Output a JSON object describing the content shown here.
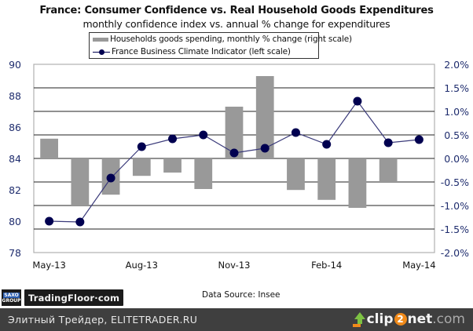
{
  "chart_data": {
    "type": "bar+line",
    "title": "France: Consumer Confidence vs. Real Household Goods Expenditures",
    "subtitle": "monthly confidence index vs. annual  % change for expenditures",
    "categories": [
      "May-13",
      "Jun-13",
      "Jul-13",
      "Aug-13",
      "Sep-13",
      "Oct-13",
      "Nov-13",
      "Dec-13",
      "Jan-14",
      "Feb-14",
      "Mar-14",
      "Apr-14",
      "May-14"
    ],
    "x_tick_labels": [
      "May-13",
      "Aug-13",
      "Nov-13",
      "Feb-14",
      "May-14"
    ],
    "x_tick_indices": [
      0,
      3,
      6,
      9,
      12
    ],
    "series": [
      {
        "name": "Households goods spending, monthly % change (right scale)",
        "type": "bar",
        "axis": "right",
        "color": "#999999",
        "values": [
          0.42,
          -1.0,
          -0.77,
          -0.37,
          -0.3,
          -0.65,
          1.1,
          1.75,
          -0.67,
          -0.88,
          -1.05,
          -0.5,
          null
        ]
      },
      {
        "name": "France Business Climate Indicator (left scale)",
        "type": "line",
        "axis": "left",
        "color": "#000050",
        "values": [
          80.0,
          79.95,
          82.75,
          84.75,
          85.25,
          85.5,
          84.35,
          84.65,
          85.65,
          84.9,
          87.65,
          85.0,
          85.2
        ]
      }
    ],
    "left_axis": {
      "ylim": [
        78,
        90
      ],
      "ticks": [
        "90",
        "88",
        "86",
        "84",
        "82",
        "80",
        "78"
      ],
      "tick_values": [
        90,
        88,
        86,
        84,
        82,
        80,
        78
      ],
      "color": "#1f2d6e"
    },
    "right_axis": {
      "ylim": [
        -2.0,
        2.0
      ],
      "ticks": [
        "2.0%",
        "1.5%",
        "1.0%",
        "0.5%",
        "0.0%",
        "-0.5%",
        "-1.0%",
        "-1.5%",
        "-2.0%"
      ],
      "tick_values": [
        2.0,
        1.5,
        1.0,
        0.5,
        0.0,
        -0.5,
        -1.0,
        -1.5,
        -2.0
      ],
      "color": "#1f2d6e"
    },
    "grid": true,
    "legend": {
      "position": "top-center",
      "entries": [
        "Households goods spending, monthly % change (right scale)",
        "France Business Climate Indicator (left scale)"
      ]
    },
    "xlabel": "",
    "ylabel_left": "",
    "ylabel_right": ""
  },
  "source": "Data Source:  Insee",
  "branding": {
    "saxo_line1": "SAXO",
    "saxo_line2": "GROUP",
    "tradingfloor": "TradingFloor·com"
  },
  "footer": {
    "text": "Элитный Трейдер, ELITETRADER.RU",
    "clip_pre": "clip",
    "clip_two": "2",
    "clip_post": "net",
    "clip_com": ".com"
  }
}
